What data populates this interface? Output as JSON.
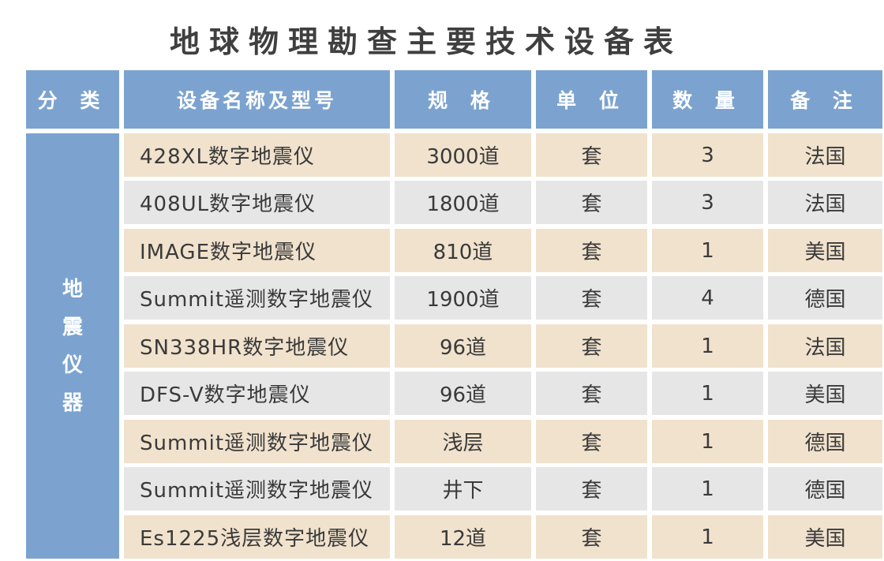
{
  "title": "地球物理勘查主要技术设备表",
  "headers": [
    "分 类",
    "设备名称及型号",
    "规 格",
    "单 位",
    "数 量",
    "备 注"
  ],
  "category": [
    "地",
    "震",
    "仪",
    "器"
  ],
  "rows": [
    {
      "name": "428XL数字地震仪",
      "spec": "3000道",
      "unit": "套",
      "qty": "3",
      "note": "法国"
    },
    {
      "name": "408UL数字地震仪",
      "spec": "1800道",
      "unit": "套",
      "qty": "3",
      "note": "法国"
    },
    {
      "name": "IMAGE数字地震仪",
      "spec": "810道",
      "unit": "套",
      "qty": "1",
      "note": "美国"
    },
    {
      "name": "Summit遥测数字地震仪",
      "spec": "1900道",
      "unit": "套",
      "qty": "4",
      "note": "德国"
    },
    {
      "name": "SN338HR数字地震仪",
      "spec": "96道",
      "unit": "套",
      "qty": "1",
      "note": "法国"
    },
    {
      "name": "DFS-V数字地震仪",
      "spec": "96道",
      "unit": "套",
      "qty": "1",
      "note": "美国"
    },
    {
      "name": "Summit遥测数字地震仪",
      "spec": "浅层",
      "unit": "套",
      "qty": "1",
      "note": "德国"
    },
    {
      "name": "Summit遥测数字地震仪",
      "spec": "井下",
      "unit": "套",
      "qty": "1",
      "note": "德国"
    },
    {
      "name": "Es1225浅层数字地震仪",
      "spec": "12道",
      "unit": "套",
      "qty": "1",
      "note": "美国"
    }
  ],
  "colors": {
    "header_bg": "#7ca3cf",
    "row_tan": "#f1e2cd",
    "row_gray": "#e6e6e6",
    "text": "#3a3a3a"
  }
}
